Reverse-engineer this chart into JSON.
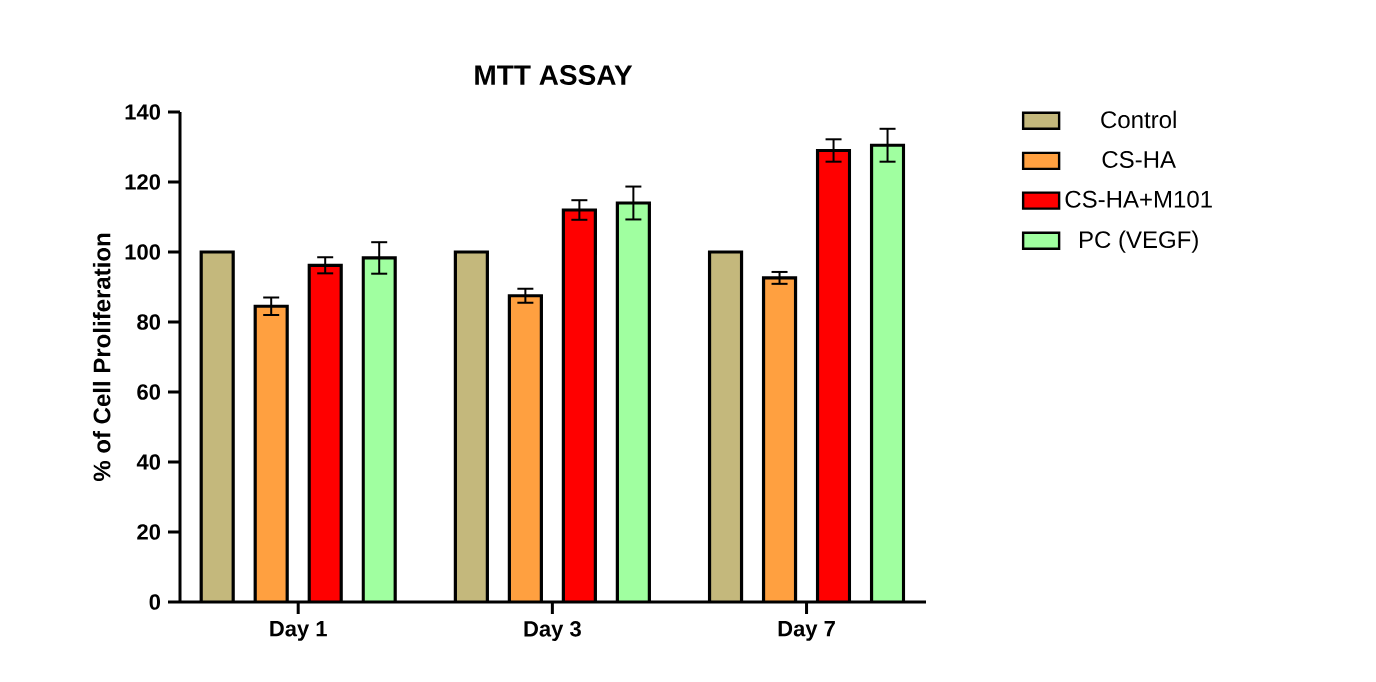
{
  "chart_data": {
    "type": "bar",
    "title": "MTT ASSAY",
    "ylabel": "% of Cell Proliferation",
    "categories": [
      "Day 1",
      "Day 3",
      "Day 7"
    ],
    "series": [
      {
        "name": "Control",
        "color": "#c4b87c",
        "values": [
          100,
          100,
          100
        ]
      },
      {
        "name": "CS-HA",
        "color": "#ffa040",
        "values": [
          84.5,
          87.5,
          92.6
        ],
        "errors": [
          2.5,
          2,
          1.7
        ]
      },
      {
        "name": "CS-HA+M101",
        "color": "#ff0000",
        "values": [
          96.2,
          112,
          129
        ],
        "errors": [
          2.3,
          2.8,
          3.2
        ]
      },
      {
        "name": "PC (VEGF)",
        "color": "#a0ffa0",
        "values": [
          98.3,
          114,
          130.5
        ],
        "errors": [
          4.5,
          4.7,
          4.7
        ]
      }
    ],
    "ylim": [
      0,
      140
    ],
    "yticks": [
      0,
      20,
      40,
      60,
      80,
      100,
      120,
      140
    ],
    "legend": "right"
  }
}
